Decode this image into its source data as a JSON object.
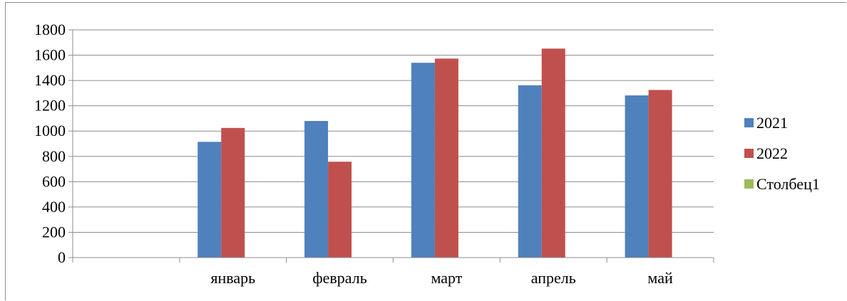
{
  "chart_data": {
    "type": "bar",
    "categories": [
      "",
      "январь",
      "февраль",
      "март",
      "апрель",
      "май"
    ],
    "series": [
      {
        "name": "2021",
        "values": [
          null,
          915,
          1080,
          1540,
          1362,
          1282
        ],
        "color": "#4F81BD"
      },
      {
        "name": "2022",
        "values": [
          null,
          1025,
          758,
          1573,
          1652,
          1325
        ],
        "color": "#C0504D"
      },
      {
        "name": "Столбец1",
        "values": [
          null,
          null,
          null,
          null,
          null,
          null
        ],
        "color": "#9BBB59"
      }
    ],
    "ylim": [
      0,
      1800
    ],
    "yticks": [
      0,
      200,
      400,
      600,
      800,
      1000,
      1200,
      1400,
      1600,
      1800
    ],
    "grid": true,
    "legend": "right"
  }
}
